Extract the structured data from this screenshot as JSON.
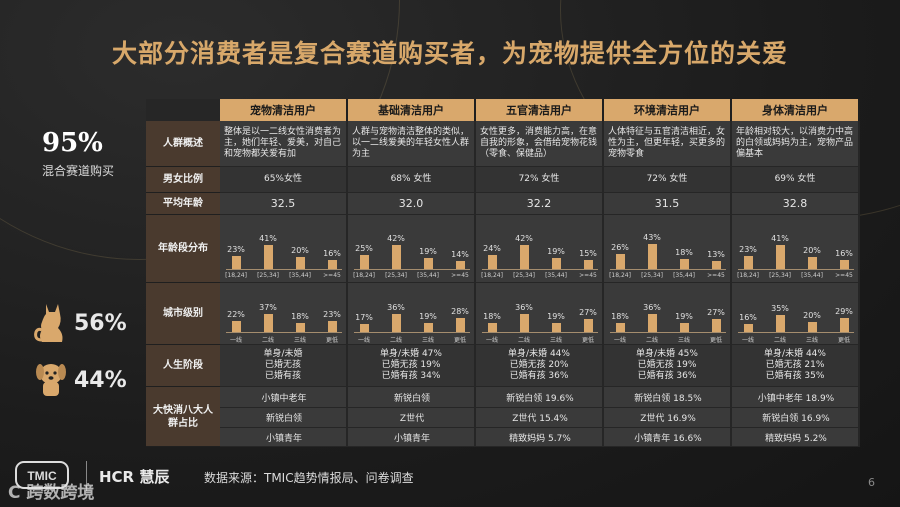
{
  "title": "大部分消费者是复合赛道购买者，为宠物提供全方位的关爱",
  "left": {
    "pct": "95%",
    "label": "混合赛道购买",
    "cat_pct": "56%",
    "dog_pct": "44%"
  },
  "columns": [
    "宠物清洁用户",
    "基础清洁用户",
    "五官清洁用户",
    "环境清洁用户",
    "身体清洁用户"
  ],
  "row_labels": {
    "overview": "人群概述",
    "gender": "男女比例",
    "avg_age": "平均年龄",
    "age_dist": "年龄段分布",
    "city": "城市级别",
    "life": "人生阶段",
    "segments": "大快消八大人群占比"
  },
  "overview": [
    "整体是以一二线女性消费者为主，她们年轻、爱美，对自己和宠物都关爱有加",
    "人群与宠物清洁整体的类似，以一二线爱美的年轻女性人群为主",
    "女性更多，消费能力高，在意自我的形象，会借给宠物花钱（零食、保健品）",
    "人体特征与五官清洁相近，女性为主，但更年轻，买更多的宠物零食",
    "年龄相对较大，以消费力中高的白领或妈妈为主，宠物产品偏基本"
  ],
  "gender": [
    "65%女性",
    "68% 女性",
    "72% 女性",
    "72% 女性",
    "69% 女性"
  ],
  "avg_age": [
    "32.5",
    "32.0",
    "32.2",
    "31.5",
    "32.8"
  ],
  "age_categories": [
    "[18,24]",
    "[25,34]",
    "[35,44]",
    ">=45"
  ],
  "age_values": [
    [
      23,
      41,
      20,
      16
    ],
    [
      25,
      42,
      19,
      14
    ],
    [
      24,
      42,
      19,
      15
    ],
    [
      26,
      43,
      18,
      13
    ],
    [
      23,
      41,
      20,
      16
    ]
  ],
  "age_labels": [
    [
      "23%",
      "41%",
      "20%",
      "16%"
    ],
    [
      "25%",
      "42%",
      "19%",
      "14%"
    ],
    [
      "24%",
      "42%",
      "19%",
      "15%"
    ],
    [
      "26%",
      "43%",
      "18%",
      "13%"
    ],
    [
      "23%",
      "41%",
      "20%",
      "16%"
    ]
  ],
  "city_categories": [
    "一线",
    "二线",
    "三线",
    "更低"
  ],
  "city_values": [
    [
      22,
      37,
      18,
      23
    ],
    [
      17,
      36,
      19,
      28
    ],
    [
      18,
      36,
      19,
      27
    ],
    [
      18,
      36,
      19,
      27
    ],
    [
      16,
      35,
      20,
      29
    ]
  ],
  "city_labels": [
    [
      "22%",
      "37%",
      "18%",
      "23%"
    ],
    [
      "17%",
      "36%",
      "19%",
      "28%"
    ],
    [
      "18%",
      "36%",
      "19%",
      "27%"
    ],
    [
      "18%",
      "36%",
      "19%",
      "27%"
    ],
    [
      "16%",
      "35%",
      "20%",
      "29%"
    ]
  ],
  "life": [
    [
      "单身/未婚",
      "已婚无孩",
      "已婚有孩"
    ],
    [
      "单身/未婚 47%",
      "已婚无孩 19%",
      "已婚有孩 34%"
    ],
    [
      "单身/未婚 44%",
      "已婚无孩 20%",
      "已婚有孩 36%"
    ],
    [
      "单身/未婚 45%",
      "已婚无孩 19%",
      "已婚有孩 36%"
    ],
    [
      "单身/未婚 44%",
      "已婚无孩 21%",
      "已婚有孩 35%"
    ]
  ],
  "segments": [
    [
      "小镇中老年",
      "新锐白领",
      "小镇青年"
    ],
    [
      "新锐白领",
      "Z世代",
      "小镇青年"
    ],
    [
      "新锐白领 19.6%",
      "Z世代 15.4%",
      "精致妈妈 5.7%"
    ],
    [
      "新锐白领 18.5%",
      "Z世代 16.9%",
      "小镇青年 16.6%"
    ],
    [
      "小镇中老年 18.9%",
      "新锐白领 16.9%",
      "精致妈妈 5.2%"
    ]
  ],
  "footer": {
    "source": "数据来源：TMIC趋势情报局、问卷调查",
    "brand_tmic": "TMIC",
    "brand_hcr": "HCR 慧辰",
    "page": "6",
    "watermark": "C 跨数跨境"
  },
  "colors": {
    "accent": "#d9a86c",
    "bg": "#1f1f1f"
  }
}
